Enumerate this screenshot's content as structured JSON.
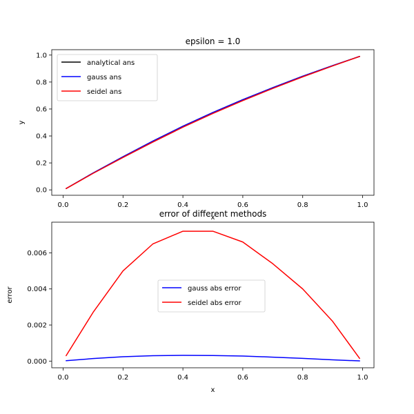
{
  "chart_data": [
    {
      "type": "line",
      "title": "epsilon = 1.0",
      "xlabel": "x",
      "ylabel": "y",
      "xlim": [
        -0.038,
        1.038
      ],
      "ylim": [
        -0.04,
        1.04
      ],
      "xticks": [
        0.0,
        0.2,
        0.4,
        0.6,
        0.8,
        1.0
      ],
      "xtick_labels": [
        "0.0",
        "0.2",
        "0.4",
        "0.6",
        "0.8",
        "1.0"
      ],
      "yticks": [
        0.0,
        0.2,
        0.4,
        0.6,
        0.8,
        1.0
      ],
      "ytick_labels": [
        "0.0",
        "0.2",
        "0.4",
        "0.6",
        "0.8",
        "1.0"
      ],
      "grid": false,
      "legend_position": "upper-left",
      "series": [
        {
          "name": "analytical ans",
          "color": "#000000",
          "x": [
            0.01,
            0.1,
            0.2,
            0.3,
            0.4,
            0.5,
            0.6,
            0.7,
            0.8,
            0.9,
            0.99
          ],
          "y": [
            0.01,
            0.125,
            0.246,
            0.362,
            0.472,
            0.574,
            0.669,
            0.758,
            0.843,
            0.922,
            0.99
          ]
        },
        {
          "name": "gauss ans",
          "color": "#0000ff",
          "x": [
            0.01,
            0.1,
            0.2,
            0.3,
            0.4,
            0.5,
            0.6,
            0.7,
            0.8,
            0.9,
            0.99
          ],
          "y": [
            0.01,
            0.125,
            0.246,
            0.362,
            0.472,
            0.574,
            0.669,
            0.758,
            0.843,
            0.922,
            0.99
          ]
        },
        {
          "name": "seidel ans",
          "color": "#ff0000",
          "x": [
            0.01,
            0.1,
            0.2,
            0.3,
            0.4,
            0.5,
            0.6,
            0.7,
            0.8,
            0.9,
            0.99
          ],
          "y": [
            0.0097,
            0.1224,
            0.2404,
            0.3551,
            0.4649,
            0.5668,
            0.6622,
            0.7526,
            0.8385,
            0.9195,
            0.9899
          ]
        }
      ]
    },
    {
      "type": "line",
      "title": "error of different methods",
      "xlabel": "x",
      "ylabel": "error",
      "xlim": [
        -0.038,
        1.038
      ],
      "ylim": [
        -0.00037,
        0.0077
      ],
      "xticks": [
        0.0,
        0.2,
        0.4,
        0.6,
        0.8,
        1.0
      ],
      "xtick_labels": [
        "0.0",
        "0.2",
        "0.4",
        "0.6",
        "0.8",
        "1.0"
      ],
      "yticks": [
        0.0,
        0.002,
        0.004,
        0.006
      ],
      "ytick_labels": [
        "0.000",
        "0.002",
        "0.004",
        "0.006"
      ],
      "grid": false,
      "legend_position": "center",
      "series": [
        {
          "name": "gauss abs error",
          "color": "#0000ff",
          "x": [
            0.01,
            0.1,
            0.2,
            0.3,
            0.4,
            0.5,
            0.6,
            0.7,
            0.8,
            0.9,
            0.99
          ],
          "y": [
            2e-05,
            0.00014,
            0.00024,
            0.0003,
            0.00032,
            0.00031,
            0.00028,
            0.00022,
            0.00015,
            7e-05,
            1e-05
          ]
        },
        {
          "name": "seidel abs error",
          "color": "#ff0000",
          "x": [
            0.01,
            0.1,
            0.2,
            0.3,
            0.4,
            0.5,
            0.6,
            0.7,
            0.8,
            0.9,
            0.99
          ],
          "y": [
            0.0003,
            0.0027,
            0.005,
            0.0065,
            0.0072,
            0.0072,
            0.0066,
            0.0054,
            0.004,
            0.0022,
            0.00015
          ]
        }
      ]
    }
  ]
}
